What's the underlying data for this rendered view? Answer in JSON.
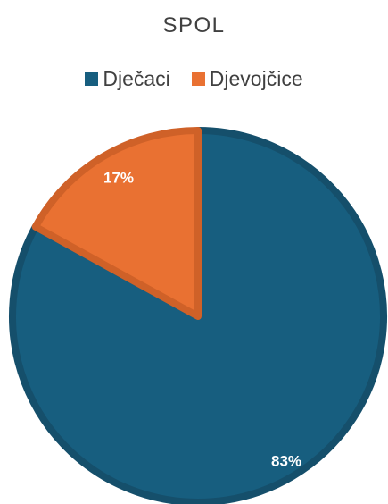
{
  "chart_data": {
    "type": "pie",
    "title": "SPOL",
    "legend_position": "top",
    "slices": [
      {
        "name": "Dječaci",
        "value": 83,
        "label": "83%",
        "color": "#175e7f",
        "edge": "#154f6b"
      },
      {
        "name": "Djevojčice",
        "value": 17,
        "label": "17%",
        "color": "#e97132",
        "edge": "#cf6128"
      }
    ]
  }
}
